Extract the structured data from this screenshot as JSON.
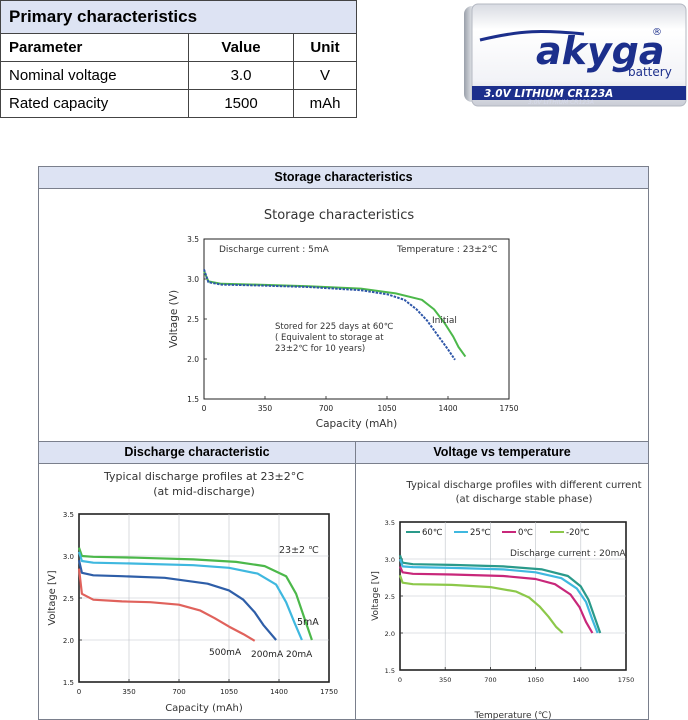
{
  "primary": {
    "title": "Primary characteristics",
    "headers": [
      "Parameter",
      "Value",
      "Unit"
    ],
    "rows": [
      [
        "Nominal voltage",
        "3.0",
        "V"
      ],
      [
        "Rated capacity",
        "1500",
        "mAh"
      ]
    ]
  },
  "battery_image": {
    "brand": "akyga",
    "sub": "battery",
    "reg": "®",
    "label": "3.0V LITHIUM CR123A",
    "label_mirror": "3.0V LITHIUM CR123A",
    "colors": {
      "band": "#1c2f8c",
      "body": "#f4f5f8",
      "brand": "#1c2f8c"
    }
  },
  "panels": {
    "storage_header": "Storage characteristics",
    "discharge_header": "Discharge characteristic",
    "temperature_header": "Voltage vs temperature"
  },
  "chart_data": [
    {
      "type": "line",
      "title": "Storage characteristics",
      "xlabel": "Capacity (mAh)",
      "ylabel": "Voltage (V)",
      "xlim": [
        0,
        1750
      ],
      "ylim": [
        1.5,
        3.5
      ],
      "xticks": [
        0,
        350,
        700,
        1050,
        1400,
        1750
      ],
      "yticks": [
        1.5,
        2.0,
        2.5,
        3.0,
        3.5
      ],
      "annotations": [
        "Discharge current : 5mA",
        "Temperature : 23±2℃",
        "Stored for 225 days at 60℃",
        "( Equivalent to storage at",
        "23±2℃ for 10 years)"
      ],
      "grid": false,
      "series": [
        {
          "name": "Initial",
          "color": "#4cb84a",
          "x": [
            0,
            25,
            100,
            300,
            600,
            900,
            1100,
            1250,
            1320,
            1380,
            1430,
            1460,
            1500
          ],
          "y": [
            3.1,
            2.97,
            2.94,
            2.93,
            2.91,
            2.88,
            2.82,
            2.74,
            2.62,
            2.45,
            2.28,
            2.15,
            2.03
          ]
        },
        {
          "name": "",
          "color": "#2e56a8",
          "x": [
            0,
            25,
            100,
            300,
            600,
            900,
            1050,
            1150,
            1220,
            1280,
            1340,
            1400,
            1440
          ],
          "y": [
            3.12,
            2.96,
            2.93,
            2.92,
            2.9,
            2.86,
            2.81,
            2.74,
            2.62,
            2.48,
            2.3,
            2.12,
            1.99
          ]
        }
      ]
    },
    {
      "type": "line",
      "title": "Typical discharge profiles at 23±2°C",
      "subtitle": "(at mid-discharge)",
      "xlabel": "Capacity (mAh)",
      "ylabel": "Voltage [V]",
      "xlim": [
        0,
        1750
      ],
      "ylim": [
        1.5,
        3.5
      ],
      "xticks": [
        0,
        350,
        700,
        1050,
        1400,
        1750
      ],
      "yticks": [
        1.5,
        2.0,
        2.5,
        3.0,
        3.5
      ],
      "annotations": [
        "23±2 ℃"
      ],
      "grid": true,
      "series": [
        {
          "name": "5mA",
          "color": "#4cb84a",
          "x": [
            0,
            20,
            100,
            400,
            800,
            1100,
            1300,
            1450,
            1520,
            1580,
            1630
          ],
          "y": [
            3.1,
            3.0,
            2.99,
            2.98,
            2.96,
            2.93,
            2.88,
            2.76,
            2.55,
            2.25,
            2.0
          ]
        },
        {
          "name": "20mA",
          "color": "#3fb8df",
          "x": [
            0,
            20,
            100,
            400,
            800,
            1050,
            1250,
            1380,
            1450,
            1510,
            1560
          ],
          "y": [
            3.05,
            2.94,
            2.92,
            2.91,
            2.89,
            2.86,
            2.79,
            2.66,
            2.45,
            2.2,
            2.0
          ]
        },
        {
          "name": "200mA",
          "color": "#2e5ea8",
          "x": [
            0,
            20,
            100,
            300,
            600,
            900,
            1050,
            1150,
            1230,
            1290,
            1380
          ],
          "y": [
            2.95,
            2.8,
            2.77,
            2.76,
            2.74,
            2.67,
            2.59,
            2.48,
            2.33,
            2.18,
            2.0
          ]
        },
        {
          "name": "500mA",
          "color": "#e0625c",
          "x": [
            0,
            20,
            100,
            300,
            500,
            700,
            850,
            950,
            1050,
            1150,
            1230
          ],
          "y": [
            2.85,
            2.55,
            2.48,
            2.46,
            2.45,
            2.42,
            2.35,
            2.26,
            2.16,
            2.07,
            1.99
          ]
        }
      ],
      "legend_labels": [
        "5mA",
        "500mA",
        "200mA 20mA"
      ]
    },
    {
      "type": "line",
      "title": "Typical discharge profiles with different current",
      "subtitle": "(at discharge stable phase)",
      "xlabel": "Temperature (℃)",
      "ylabel": "Voltage [V]",
      "xlim": [
        0,
        1750
      ],
      "ylim": [
        1.5,
        3.5
      ],
      "xticks": [
        0,
        350,
        700,
        1050,
        1400,
        1750
      ],
      "yticks": [
        1.5,
        2.0,
        2.5,
        3.0,
        3.5
      ],
      "annotations": [
        "Discharge current : 20mA"
      ],
      "grid": true,
      "legend_position": "top",
      "series": [
        {
          "name": "60℃",
          "color": "#2a9a8a",
          "x": [
            0,
            20,
            100,
            400,
            800,
            1100,
            1300,
            1400,
            1460,
            1510,
            1550
          ],
          "y": [
            3.05,
            2.95,
            2.93,
            2.92,
            2.9,
            2.86,
            2.77,
            2.63,
            2.45,
            2.2,
            2.0
          ]
        },
        {
          "name": "25℃",
          "color": "#3fb8df",
          "x": [
            0,
            20,
            100,
            400,
            800,
            1050,
            1250,
            1370,
            1440,
            1490,
            1530
          ],
          "y": [
            3.0,
            2.9,
            2.89,
            2.88,
            2.86,
            2.82,
            2.74,
            2.6,
            2.42,
            2.18,
            2.0
          ]
        },
        {
          "name": "0℃",
          "color": "#c8277a",
          "x": [
            0,
            20,
            100,
            400,
            800,
            1050,
            1200,
            1320,
            1390,
            1440,
            1490
          ],
          "y": [
            2.9,
            2.82,
            2.8,
            2.79,
            2.77,
            2.73,
            2.66,
            2.52,
            2.35,
            2.15,
            2.0
          ]
        },
        {
          "name": "-20℃",
          "color": "#8cc84a",
          "x": [
            0,
            20,
            100,
            400,
            700,
            900,
            1000,
            1080,
            1150,
            1210,
            1260
          ],
          "y": [
            2.78,
            2.68,
            2.66,
            2.65,
            2.62,
            2.56,
            2.48,
            2.36,
            2.22,
            2.08,
            2.0
          ]
        }
      ]
    }
  ]
}
